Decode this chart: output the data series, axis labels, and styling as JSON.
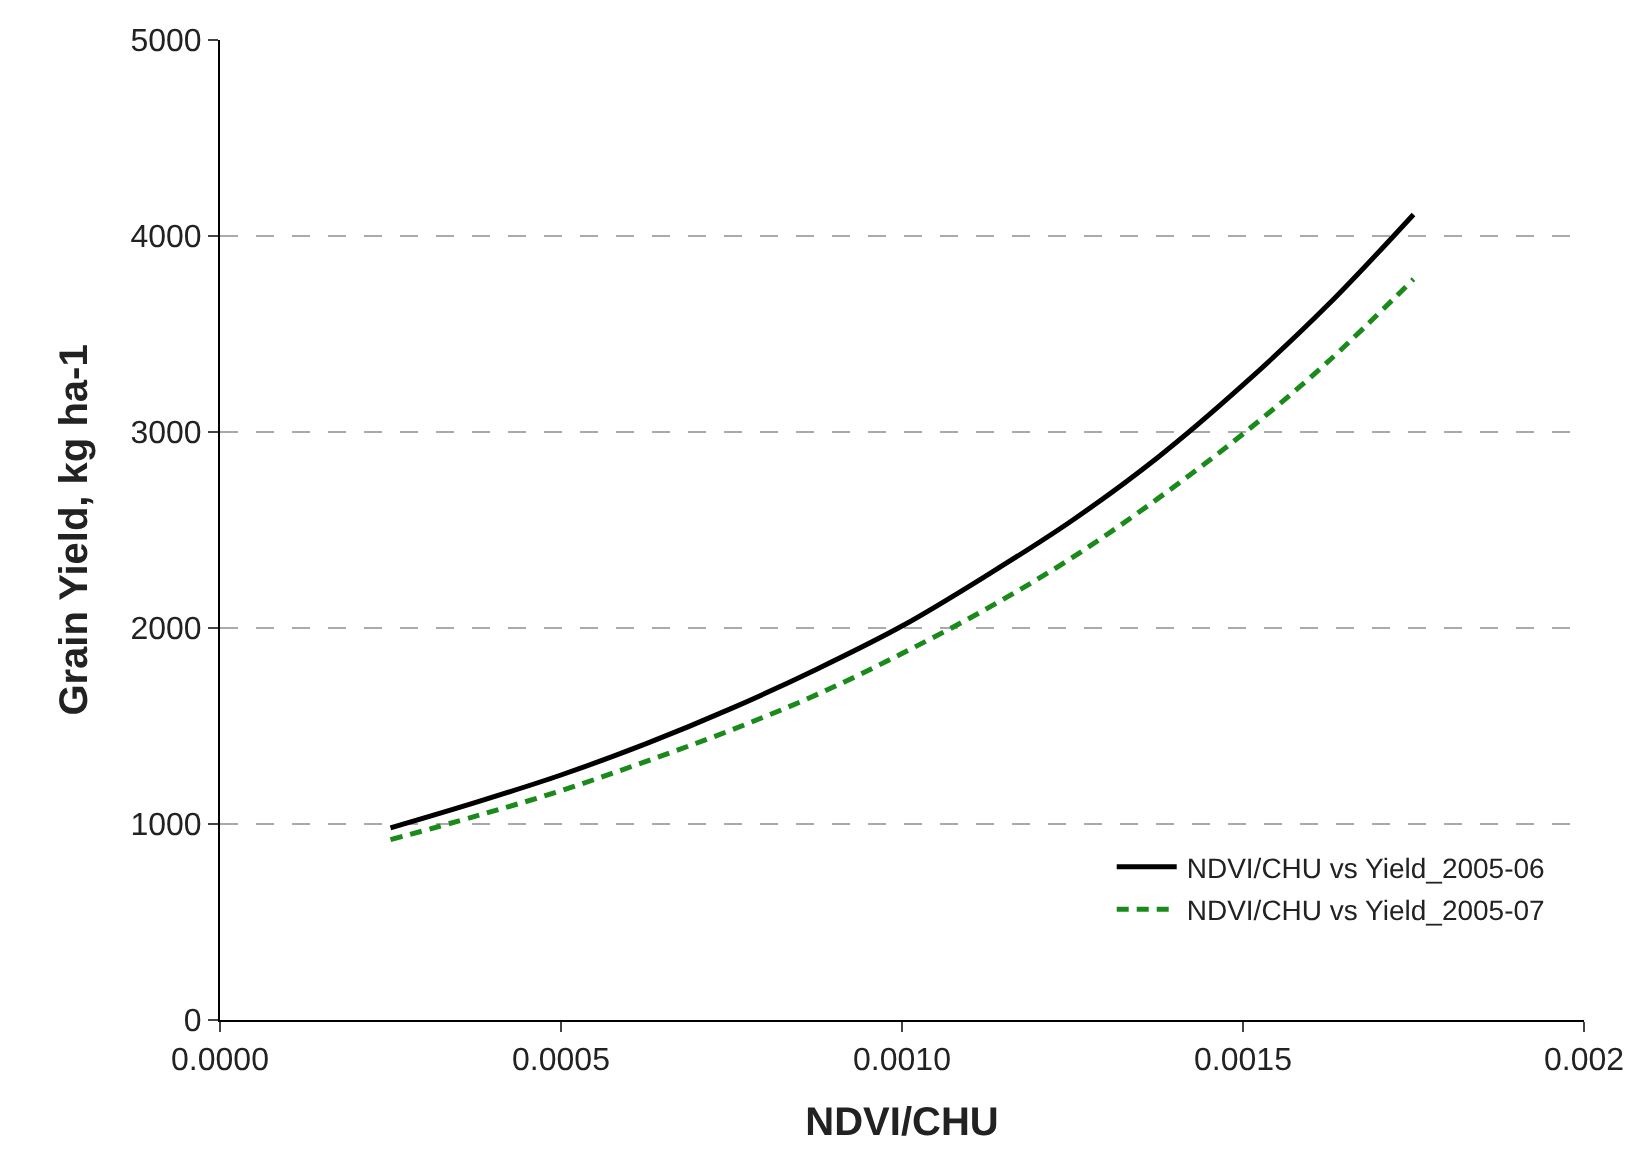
{
  "chart_data": {
    "type": "line",
    "xlabel": "NDVI/CHU",
    "ylabel": "Grain Yield, kg ha-1",
    "x": [
      0.00025,
      0.000375,
      0.0005,
      0.000625,
      0.00075,
      0.000875,
      0.001,
      0.001125,
      0.00125,
      0.001375,
      0.0015,
      0.001625,
      0.00175
    ],
    "series": [
      {
        "name": "NDVI/CHU vs Yield_2005-06",
        "color": "#000000",
        "line_style": "solid",
        "values": [
          980,
          1110,
          1250,
          1410,
          1590,
          1790,
          2010,
          2270,
          2550,
          2870,
          3240,
          3650,
          4110
        ]
      },
      {
        "name": "NDVI/CHU vs Yield_2005-07",
        "color": "#1a8a1a",
        "line_style": "dashed",
        "values": [
          920,
          1040,
          1170,
          1320,
          1480,
          1660,
          1870,
          2100,
          2360,
          2660,
          2990,
          3360,
          3780
        ]
      }
    ],
    "xlim": [
      0,
      0.002
    ],
    "xticks": [
      {
        "value": 0,
        "label": "0.0000"
      },
      {
        "value": 0.0005,
        "label": "0.0005"
      },
      {
        "value": 0.001,
        "label": "0.0010"
      },
      {
        "value": 0.0015,
        "label": "0.0015"
      },
      {
        "value": 0.002,
        "label": "0.002"
      }
    ],
    "ylim": [
      0,
      5000
    ],
    "yticks": [
      0,
      1000,
      2000,
      3000,
      4000,
      5000
    ],
    "grid": "y",
    "legend": "bottom right",
    "marker": "none"
  }
}
